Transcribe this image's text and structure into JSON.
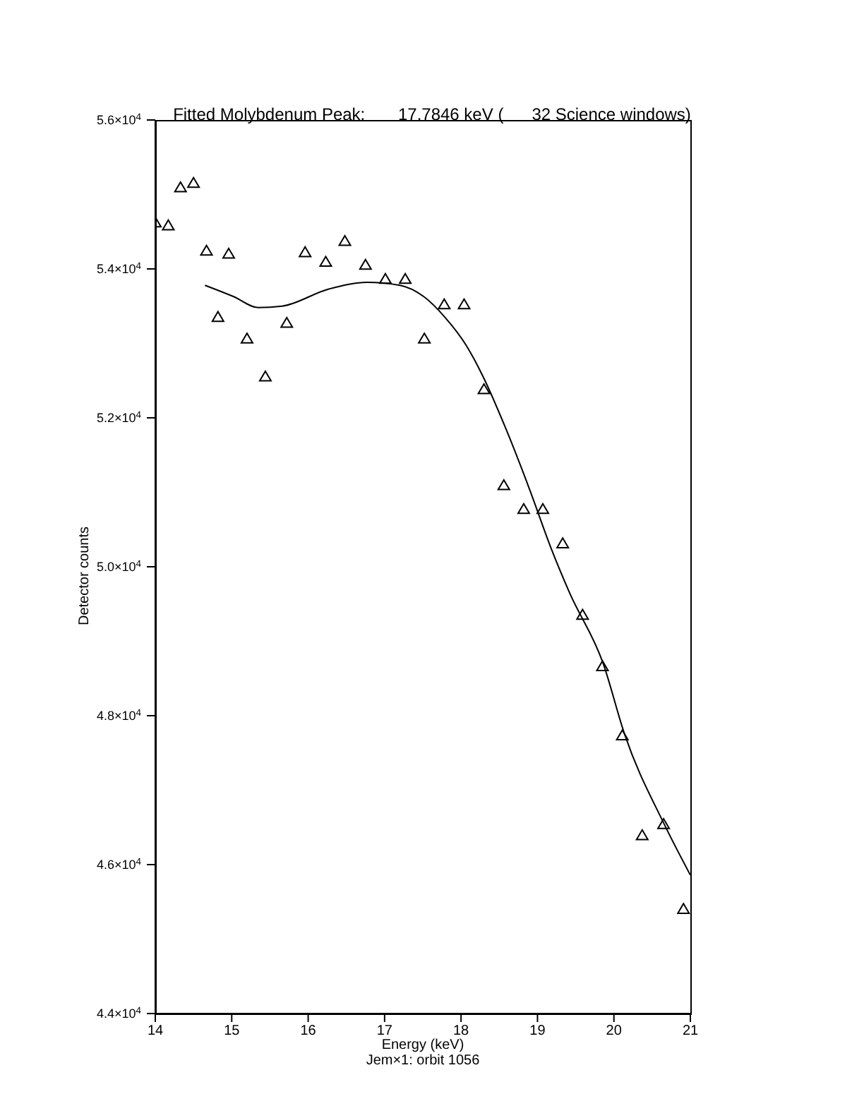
{
  "chart_data": {
    "type": "scatter",
    "title": "Fitted Molybdenum Peak:       17.7846 keV (      32 Science windows)",
    "xlabel": "Energy (keV)",
    "ylabel": "Detector counts",
    "annotations": [
      "Jem×1: orbit 1056"
    ],
    "xlim": [
      14,
      21
    ],
    "xticks": [
      14,
      15,
      16,
      17,
      18,
      19,
      20,
      21
    ],
    "ylim": [
      44000,
      56000
    ],
    "yticks": [
      {
        "value": 44000,
        "label": "4.4×10$^{4}$"
      },
      {
        "value": 46000,
        "label": "4.6×10$^{4}$"
      },
      {
        "value": 48000,
        "label": "4.8×10$^{4}$"
      },
      {
        "value": 50000,
        "label": "5.0×10$^{4}$"
      },
      {
        "value": 52000,
        "label": "5.2×10$^{4}$"
      },
      {
        "value": 54000,
        "label": "5.4×10$^{4}$"
      },
      {
        "value": 56000,
        "label": "5.6×10$^{4}$"
      }
    ],
    "grid": false,
    "legend": false,
    "series": [
      {
        "marker": "triangle",
        "color": "#000000",
        "x": [
          14.0,
          14.17,
          14.33,
          14.5,
          14.67,
          14.82,
          14.96,
          15.2,
          15.44,
          15.72,
          15.96,
          16.23,
          16.48,
          16.75,
          17.01,
          17.27,
          17.52,
          17.78,
          18.04,
          18.3,
          18.56,
          18.82,
          19.07,
          19.33,
          19.59,
          19.85,
          20.11,
          20.37,
          20.65,
          20.91
        ],
        "values": [
          54620,
          54580,
          55090,
          55150,
          54240,
          53350,
          54200,
          53060,
          52550,
          53270,
          54220,
          54090,
          54370,
          54050,
          53860,
          53860,
          53060,
          53520,
          53520,
          52380,
          51090,
          50770,
          50770,
          50310,
          49350,
          48660,
          47730,
          46390,
          46540,
          45400
        ]
      },
      {
        "type": "line",
        "marker": "none",
        "line_style": "solid",
        "color": "#000000",
        "x": [
          14.65,
          15.02,
          15.35,
          15.66,
          16.27,
          16.77,
          17.2,
          17.51,
          17.79,
          18.07,
          18.29,
          18.58,
          18.9,
          19.17,
          19.42,
          19.86,
          20.14,
          20.65,
          21.0
        ],
        "values": [
          53780,
          53630,
          53480,
          53500,
          53730,
          53820,
          53780,
          53630,
          53350,
          52970,
          52550,
          51870,
          51030,
          50270,
          49650,
          48700,
          47750,
          46560,
          45860
        ]
      }
    ]
  }
}
